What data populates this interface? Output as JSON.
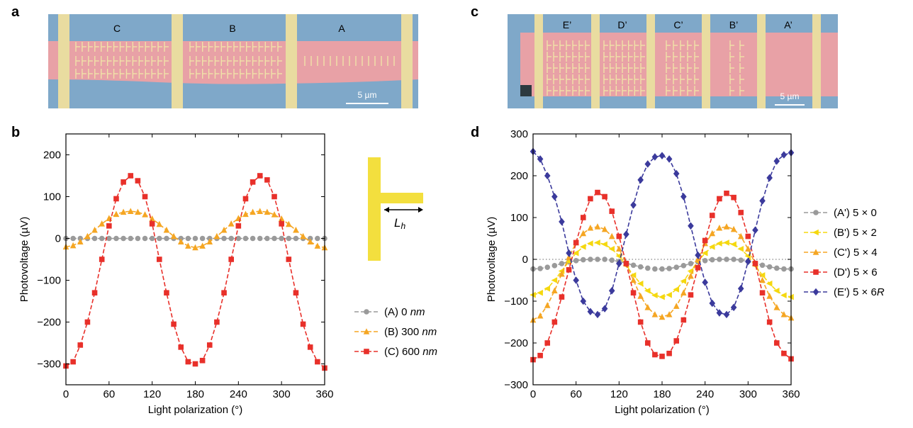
{
  "panels": {
    "a": "a",
    "b": "b",
    "c": "c",
    "d": "d"
  },
  "micrograph_a": {
    "sections": [
      "C",
      "B",
      "A"
    ],
    "scale_bar": "5 µm"
  },
  "micrograph_c": {
    "sections": [
      "E’",
      "D’",
      "C’",
      "B’",
      "A’"
    ],
    "scale_bar": "5 µm"
  },
  "inset_b": {
    "label_main": "L",
    "label_sub": "h"
  },
  "colors": {
    "grey": "#9a9a9a",
    "yellow": "#f5d80f",
    "orange": "#f5a623",
    "red": "#e8302a",
    "blue": "#3b3a9c",
    "inset": "#f3df3e",
    "device_pink": "#e8a1a6",
    "device_blue": "#7fa8c9",
    "electrode": "#e9dca0"
  },
  "chart_data": [
    {
      "type": "line",
      "panel": "b",
      "xlabel": "Light polarization (°)",
      "ylabel": "Photovoltage (µV)",
      "xlim": [
        0,
        360
      ],
      "ylim": [
        -350,
        250
      ],
      "xticks": [
        0,
        60,
        120,
        180,
        240,
        300,
        360
      ],
      "yticks": [
        -300,
        -200,
        -100,
        0,
        100,
        200
      ],
      "legend_position": "right",
      "series": [
        {
          "name": "(A) 0 nm",
          "label_prefix": "(A) 0 ",
          "label_unit": "nm",
          "color": "grey",
          "marker": "circle",
          "x": [
            0,
            10,
            20,
            30,
            40,
            50,
            60,
            70,
            80,
            90,
            100,
            110,
            120,
            130,
            140,
            150,
            160,
            170,
            180,
            190,
            200,
            210,
            220,
            230,
            240,
            250,
            260,
            270,
            280,
            290,
            300,
            310,
            320,
            330,
            340,
            350,
            360
          ],
          "y": [
            0,
            0,
            0,
            0,
            0,
            0,
            0,
            0,
            0,
            0,
            0,
            0,
            0,
            0,
            0,
            0,
            0,
            0,
            0,
            0,
            0,
            0,
            0,
            0,
            0,
            0,
            0,
            0,
            0,
            0,
            0,
            0,
            0,
            0,
            0,
            0,
            0
          ]
        },
        {
          "name": "(B) 300 nm",
          "label_prefix": "(B) 300 ",
          "label_unit": "nm",
          "color": "orange",
          "marker": "triangle",
          "x": [
            0,
            10,
            20,
            30,
            40,
            50,
            60,
            70,
            80,
            90,
            100,
            110,
            120,
            130,
            140,
            150,
            160,
            170,
            180,
            190,
            200,
            210,
            220,
            230,
            240,
            250,
            260,
            270,
            280,
            290,
            300,
            310,
            320,
            330,
            340,
            350,
            360
          ],
          "y": [
            -20,
            -17,
            -8,
            5,
            20,
            35,
            48,
            58,
            63,
            65,
            63,
            57,
            47,
            34,
            20,
            5,
            -8,
            -18,
            -22,
            -18,
            -8,
            5,
            20,
            35,
            48,
            58,
            63,
            65,
            63,
            57,
            47,
            34,
            20,
            5,
            -8,
            -18,
            -22
          ]
        },
        {
          "name": "(C) 600 nm",
          "label_prefix": "(C) 600 ",
          "label_unit": "nm",
          "color": "red",
          "marker": "square",
          "x": [
            0,
            10,
            20,
            30,
            40,
            50,
            60,
            70,
            80,
            90,
            100,
            110,
            120,
            130,
            140,
            150,
            160,
            170,
            180,
            190,
            200,
            210,
            220,
            230,
            240,
            250,
            260,
            270,
            280,
            290,
            300,
            310,
            320,
            330,
            340,
            350,
            360
          ],
          "y": [
            -305,
            -295,
            -255,
            -200,
            -130,
            -50,
            30,
            95,
            135,
            150,
            138,
            100,
            35,
            -50,
            -130,
            -205,
            -260,
            -295,
            -300,
            -292,
            -255,
            -200,
            -130,
            -50,
            30,
            95,
            135,
            150,
            140,
            100,
            35,
            -50,
            -130,
            -205,
            -260,
            -295,
            -310
          ]
        }
      ]
    },
    {
      "type": "line",
      "panel": "d",
      "xlabel": "Light polarization (°)",
      "ylabel": "Photovoltage (µV)",
      "xlim": [
        0,
        360
      ],
      "ylim": [
        -300,
        300
      ],
      "xticks": [
        0,
        60,
        120,
        180,
        240,
        300,
        360
      ],
      "yticks": [
        -300,
        -200,
        -100,
        0,
        100,
        200,
        300
      ],
      "zero_line": "dotted",
      "legend_position": "right",
      "series": [
        {
          "name": "(A') 5 × 0",
          "label_prefix": "(A') 5 × 0",
          "label_unit": "",
          "color": "grey",
          "marker": "circle",
          "x": [
            0,
            10,
            20,
            30,
            40,
            50,
            60,
            70,
            80,
            90,
            100,
            110,
            120,
            130,
            140,
            150,
            160,
            170,
            180,
            190,
            200,
            210,
            220,
            230,
            240,
            250,
            260,
            270,
            280,
            290,
            300,
            310,
            320,
            330,
            340,
            350,
            360
          ],
          "y": [
            -23,
            -22,
            -19,
            -15,
            -10,
            -6,
            -3,
            -1,
            0,
            0,
            0,
            -2,
            -5,
            -9,
            -14,
            -18,
            -21,
            -23,
            -23,
            -22,
            -19,
            -15,
            -10,
            -6,
            -3,
            -1,
            0,
            0,
            0,
            -2,
            -5,
            -9,
            -14,
            -18,
            -21,
            -23,
            -23
          ]
        },
        {
          "name": "(B') 5 × 2",
          "label_prefix": "(B') 5 × 2",
          "label_unit": "",
          "color": "yellow",
          "marker": "triangle-left",
          "x": [
            0,
            10,
            20,
            30,
            40,
            50,
            60,
            70,
            80,
            90,
            100,
            110,
            120,
            130,
            140,
            150,
            160,
            170,
            180,
            190,
            200,
            210,
            220,
            230,
            240,
            250,
            260,
            270,
            280,
            290,
            300,
            310,
            320,
            330,
            340,
            350,
            360
          ],
          "y": [
            -85,
            -80,
            -70,
            -50,
            -28,
            -5,
            15,
            30,
            38,
            40,
            36,
            25,
            8,
            -15,
            -38,
            -58,
            -75,
            -86,
            -90,
            -85,
            -72,
            -52,
            -28,
            -5,
            15,
            30,
            38,
            40,
            36,
            25,
            8,
            -15,
            -38,
            -58,
            -75,
            -86,
            -90
          ]
        },
        {
          "name": "(C') 5 × 4",
          "label_prefix": "(C') 5 × 4",
          "label_unit": "",
          "color": "orange",
          "marker": "triangle",
          "x": [
            0,
            10,
            20,
            30,
            40,
            50,
            60,
            70,
            80,
            90,
            100,
            110,
            120,
            130,
            140,
            150,
            160,
            170,
            180,
            190,
            200,
            210,
            220,
            230,
            240,
            250,
            260,
            270,
            280,
            290,
            300,
            310,
            320,
            330,
            340,
            350,
            360
          ],
          "y": [
            -145,
            -135,
            -110,
            -75,
            -35,
            5,
            40,
            62,
            75,
            78,
            72,
            55,
            25,
            -10,
            -50,
            -88,
            -115,
            -132,
            -138,
            -132,
            -112,
            -80,
            -40,
            0,
            38,
            62,
            75,
            78,
            72,
            55,
            25,
            -10,
            -50,
            -88,
            -115,
            -132,
            -140
          ]
        },
        {
          "name": "(D') 5 × 6",
          "label_prefix": "(D') 5 × 6",
          "label_unit": "",
          "color": "red",
          "marker": "square",
          "x": [
            0,
            10,
            20,
            30,
            40,
            50,
            60,
            70,
            80,
            90,
            100,
            110,
            120,
            130,
            140,
            150,
            160,
            170,
            180,
            190,
            200,
            210,
            220,
            230,
            240,
            250,
            260,
            270,
            280,
            290,
            300,
            310,
            320,
            330,
            340,
            350,
            360
          ],
          "y": [
            -240,
            -230,
            -200,
            -150,
            -90,
            -25,
            40,
            100,
            145,
            160,
            150,
            115,
            55,
            -10,
            -80,
            -150,
            -200,
            -228,
            -232,
            -225,
            -195,
            -145,
            -85,
            -20,
            45,
            105,
            145,
            158,
            148,
            112,
            55,
            -10,
            -80,
            -150,
            -200,
            -225,
            -238
          ]
        },
        {
          "name": "(E') 5 × 6R",
          "label_prefix": "(E') 5 × 6",
          "label_unit": "R",
          "color": "blue",
          "marker": "diamond",
          "x": [
            0,
            10,
            20,
            30,
            40,
            50,
            60,
            70,
            80,
            90,
            100,
            110,
            120,
            130,
            140,
            150,
            160,
            170,
            180,
            190,
            200,
            210,
            220,
            230,
            240,
            250,
            260,
            270,
            280,
            290,
            300,
            310,
            320,
            330,
            340,
            350,
            360
          ],
          "y": [
            258,
            240,
            200,
            150,
            90,
            15,
            -50,
            -100,
            -125,
            -132,
            -118,
            -75,
            -10,
            60,
            130,
            190,
            228,
            245,
            248,
            240,
            205,
            150,
            80,
            10,
            -55,
            -105,
            -128,
            -132,
            -115,
            -70,
            -5,
            70,
            140,
            195,
            235,
            250,
            255
          ]
        }
      ]
    }
  ]
}
